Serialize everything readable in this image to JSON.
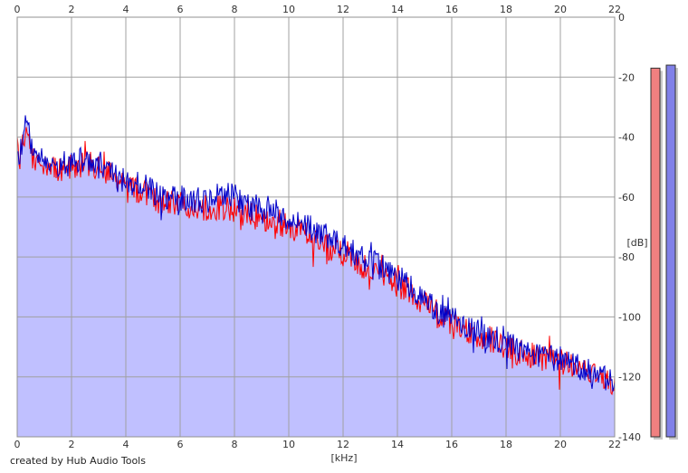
{
  "chart_data": {
    "type": "line",
    "x_unit": "[kHz]",
    "y_unit": "[dB]",
    "x_ticks": [
      "0",
      "2",
      "4",
      "6",
      "8",
      "10",
      "12",
      "14",
      "16",
      "18",
      "20",
      "22"
    ],
    "y_ticks": [
      "0",
      "-20",
      "-40",
      "-60",
      "-80",
      "-100",
      "-120",
      "-140"
    ],
    "xlim": [
      0,
      22
    ],
    "ylim": [
      -140,
      0
    ],
    "grid": true,
    "series": [
      {
        "color": "#ff0000",
        "x": [
          0,
          0.1,
          0.2,
          0.35,
          0.5,
          0.75,
          1,
          1.5,
          2,
          2.5,
          3,
          3.5,
          4,
          4.5,
          5,
          5.5,
          6,
          6.5,
          7,
          7.5,
          8,
          8.5,
          9,
          9.5,
          10,
          10.5,
          11,
          11.5,
          12,
          12.5,
          13,
          13.5,
          14,
          14.5,
          15,
          15.5,
          16,
          16.5,
          17,
          17.5,
          18,
          18.5,
          19,
          19.5,
          20,
          20.5,
          21,
          21.5,
          22
        ],
        "y": [
          -43,
          -47,
          -40,
          -37,
          -45,
          -50,
          -49,
          -51,
          -51,
          -48,
          -51,
          -53,
          -57,
          -58,
          -60,
          -62,
          -62,
          -63,
          -64,
          -64,
          -64,
          -66,
          -67,
          -68,
          -70,
          -72,
          -75,
          -77,
          -79,
          -82,
          -84,
          -86,
          -89,
          -92,
          -96,
          -99,
          -102,
          -104,
          -106,
          -108,
          -110,
          -112,
          -113,
          -114,
          -115,
          -117,
          -118,
          -121,
          -123
        ]
      },
      {
        "color": "#0000c8",
        "x": [
          0,
          0.1,
          0.2,
          0.35,
          0.5,
          0.75,
          1,
          1.5,
          2,
          2.5,
          3,
          3.5,
          4,
          4.5,
          5,
          5.5,
          6,
          6.5,
          7,
          7.5,
          8,
          8.5,
          9,
          9.5,
          10,
          10.5,
          11,
          11.5,
          12,
          12.5,
          13,
          13.5,
          14,
          14.5,
          15,
          15.5,
          16,
          16.5,
          17,
          17.5,
          18,
          18.5,
          19,
          19.5,
          20,
          20.5,
          21,
          21.5,
          22
        ],
        "y": [
          -42,
          -46,
          -38,
          -34,
          -43,
          -48,
          -47,
          -49,
          -49,
          -47,
          -49,
          -51,
          -55,
          -56,
          -58,
          -60,
          -60,
          -61,
          -61,
          -58,
          -60,
          -63,
          -64,
          -65,
          -67,
          -69,
          -71,
          -73,
          -76,
          -79,
          -81,
          -84,
          -87,
          -90,
          -94,
          -98,
          -101,
          -103,
          -105,
          -107,
          -109,
          -111,
          -112,
          -113,
          -114,
          -116,
          -117,
          -120,
          -122
        ]
      }
    ],
    "fill_color": "#c0c0ff",
    "level_meters": {
      "min": -140,
      "max": 0,
      "bars": [
        {
          "color": "#f08080",
          "level": -17
        },
        {
          "color": "#8080e8",
          "level": -16
        }
      ]
    }
  },
  "footer": {
    "credit": "created by Hub Audio Tools"
  }
}
